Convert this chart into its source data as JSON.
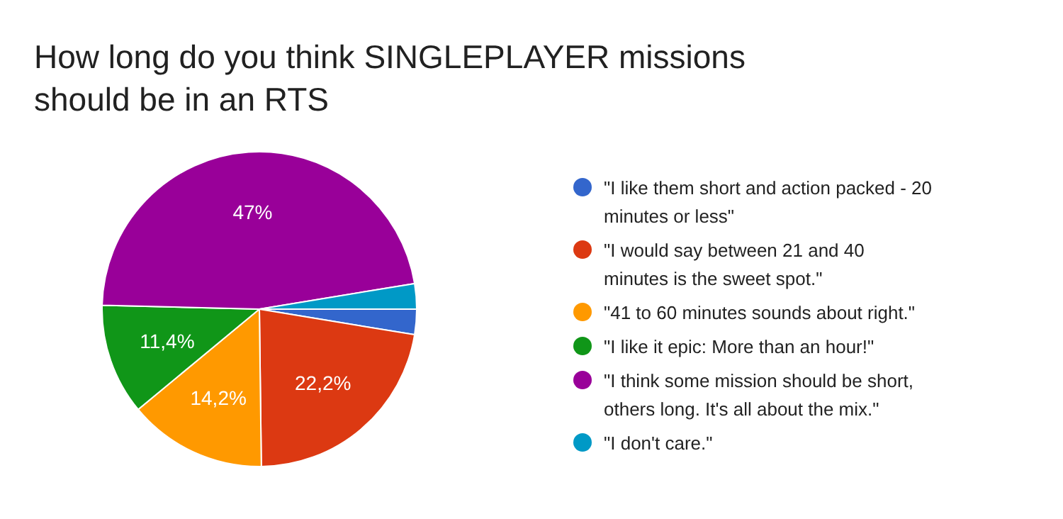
{
  "chart_data": {
    "type": "pie",
    "title": "How long do you think SINGLEPLAYER missions should be in an RTS",
    "categories": [
      "\"I like them short and action packed - 20 minutes or less\"",
      "\"I would say between 21 and 40 minutes is the sweet spot.\"",
      "\"41 to 60 minutes sounds about right.\"",
      "\"I like it epic: More than an hour!\"",
      "\"I think some mission should be short, others long. It's all about the mix.\"",
      "\"I don't care.\""
    ],
    "values": [
      2.6,
      22.2,
      14.2,
      11.4,
      47,
      2.6
    ],
    "value_labels": [
      null,
      "22,2%",
      "14,2%",
      "11,4%",
      "47%",
      null
    ],
    "colors": [
      "#3366cc",
      "#dc3912",
      "#ff9900",
      "#109618",
      "#990099",
      "#0099c6"
    ],
    "legend": "right"
  }
}
